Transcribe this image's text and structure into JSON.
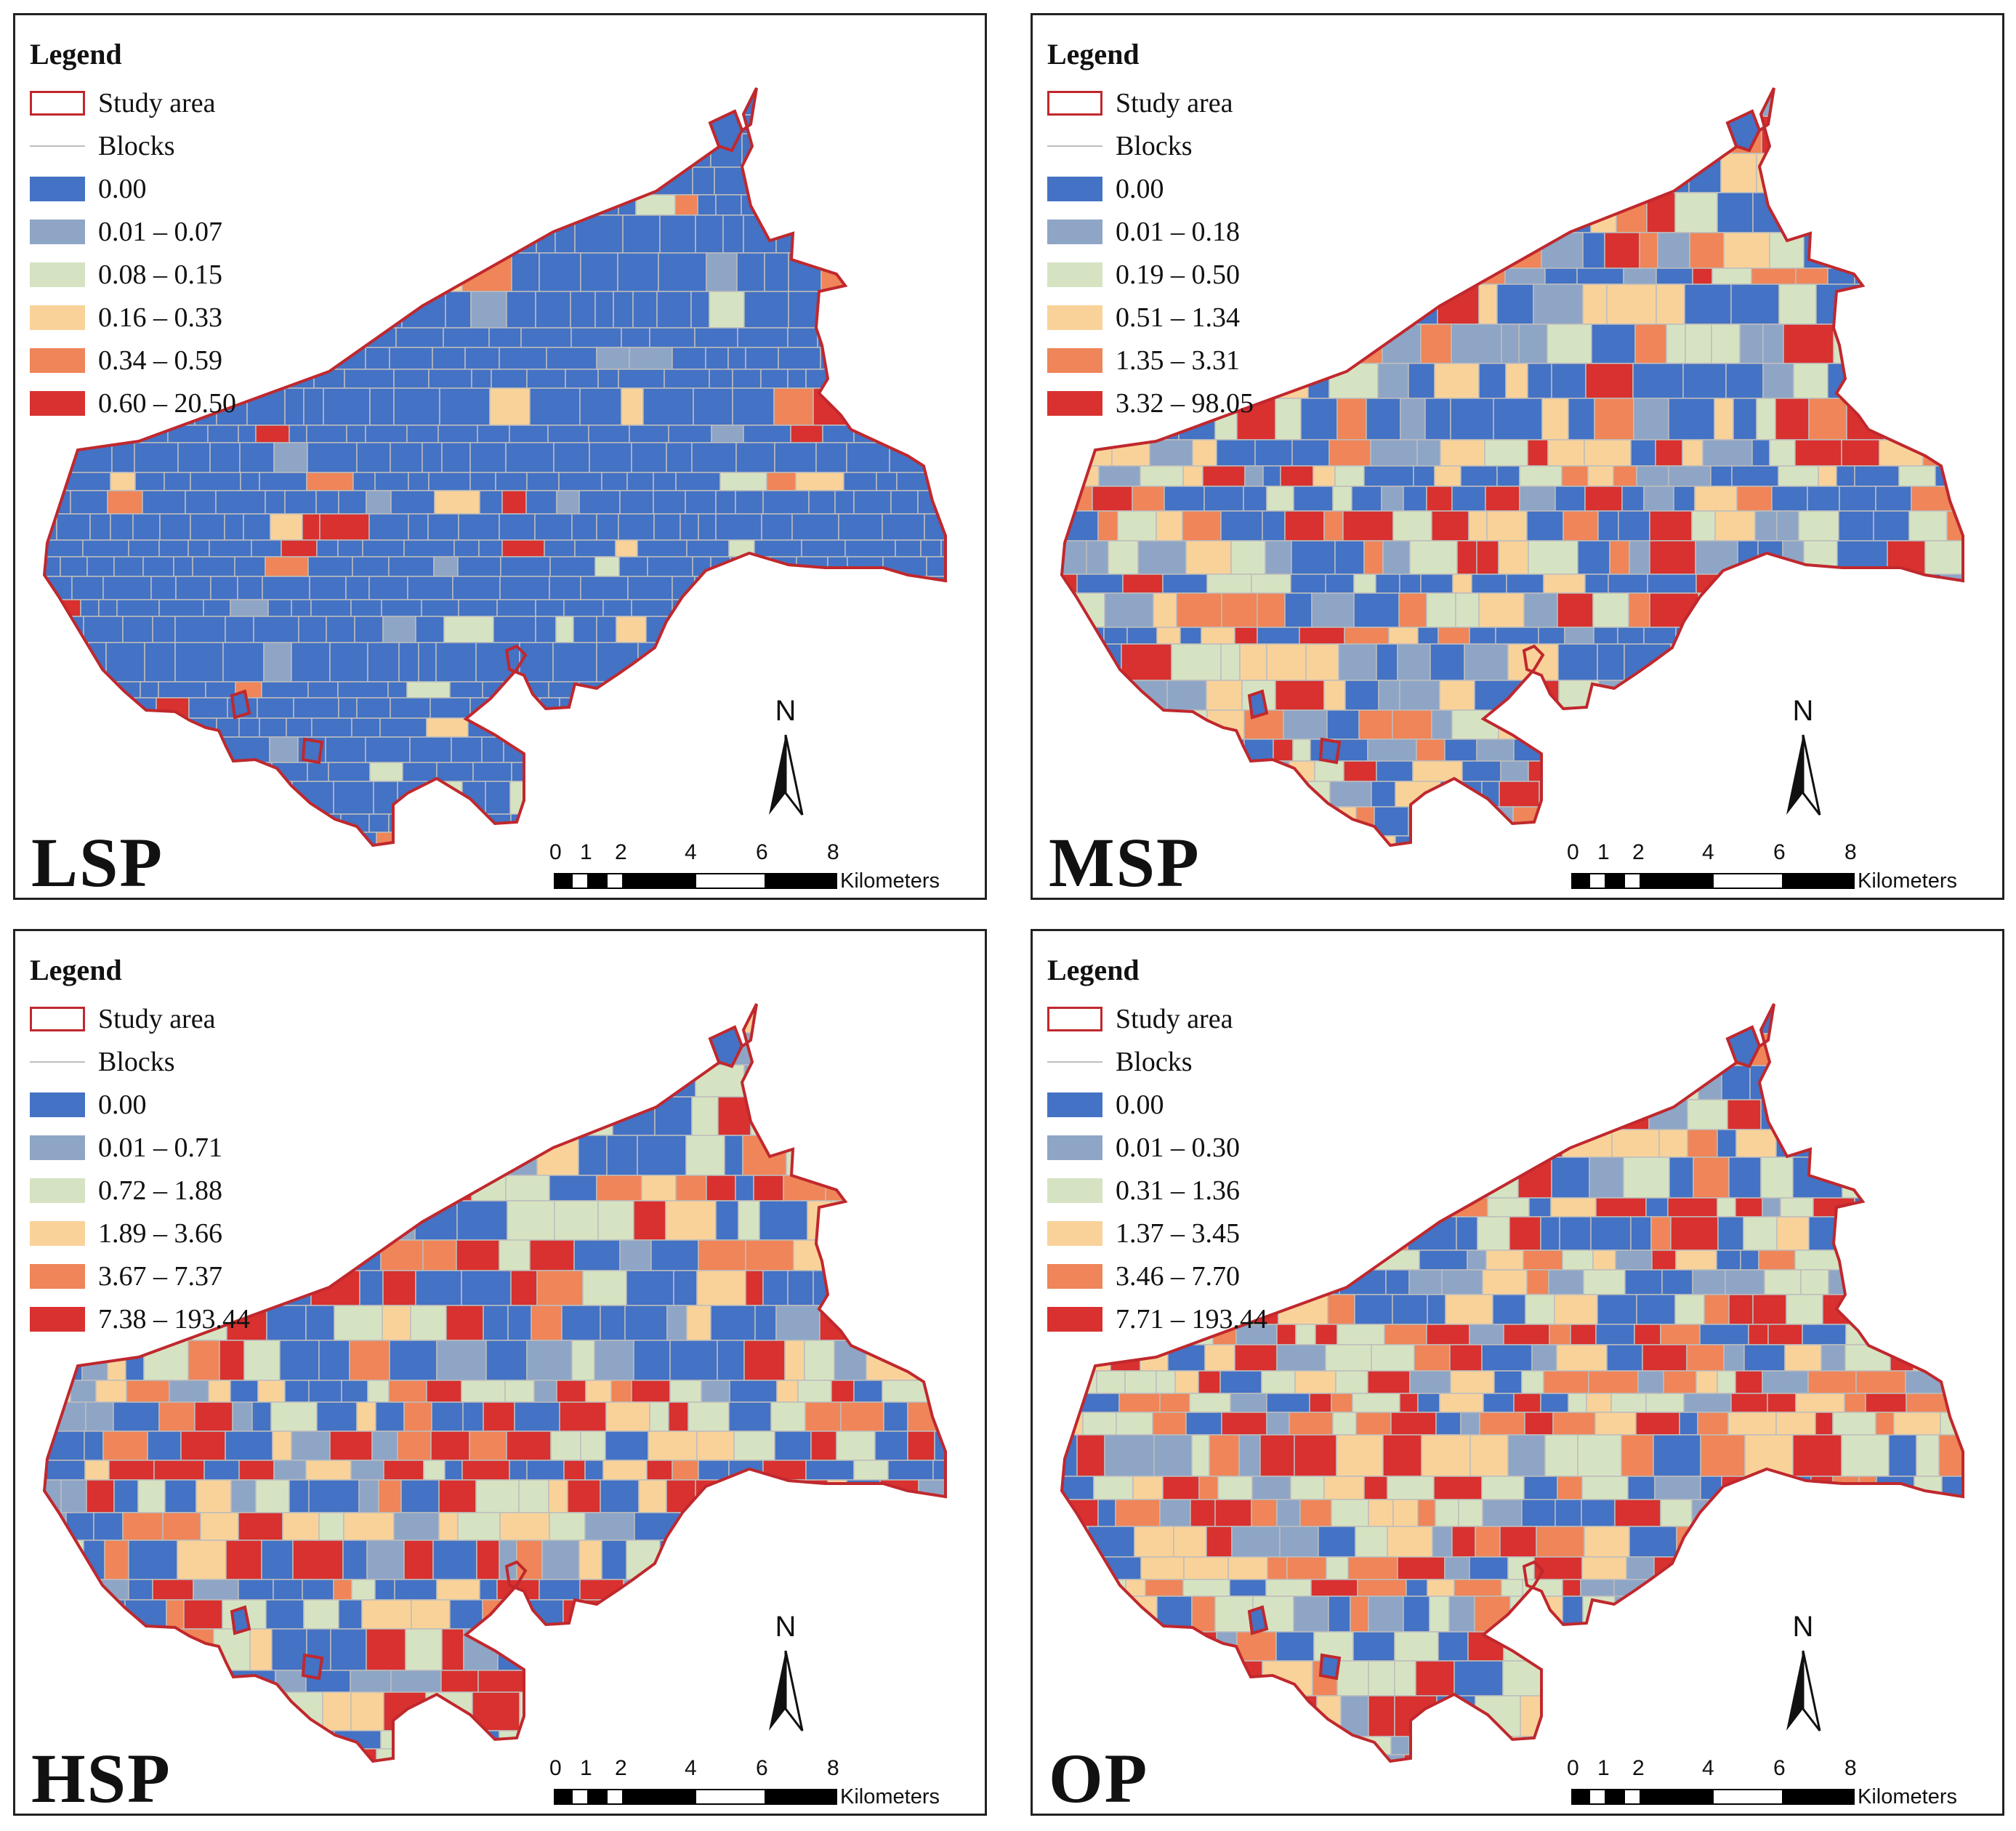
{
  "colors": {
    "study_area_outline": "#c0282d",
    "blocks_line": "#bdbdbd",
    "classes": [
      "#4472c4",
      "#8ea5c6",
      "#d6e3c2",
      "#f9d29a",
      "#ef8558",
      "#d8312f"
    ],
    "no_data": "#ffffff"
  },
  "panels": [
    {
      "id": "LSP",
      "label": "LSP",
      "legend": {
        "title": "Legend",
        "study_area": "Study area",
        "blocks": "Blocks",
        "classes": [
          "0.00",
          "0.01 – 0.07",
          "0.08 – 0.15",
          "0.16 – 0.33",
          "0.34 – 0.59",
          "0.60 – 20.50"
        ]
      },
      "class_mix": [
        0.86,
        0.04,
        0.03,
        0.03,
        0.02,
        0.02
      ]
    },
    {
      "id": "MSP",
      "label": "MSP",
      "legend": {
        "title": "Legend",
        "study_area": "Study area",
        "blocks": "Blocks",
        "classes": [
          "0.00",
          "0.01 – 0.18",
          "0.19 – 0.50",
          "0.51 – 1.34",
          "1.35 – 3.31",
          "3.32 – 98.05"
        ]
      },
      "class_mix": [
        0.38,
        0.14,
        0.12,
        0.14,
        0.1,
        0.12
      ]
    },
    {
      "id": "HSP",
      "label": "HSP",
      "legend": {
        "title": "Legend",
        "study_area": "Study area",
        "blocks": "Blocks",
        "classes": [
          "0.00",
          "0.01 – 0.71",
          "0.72 – 1.88",
          "1.89 – 3.66",
          "3.67 – 7.37",
          "7.38 – 193.44"
        ]
      },
      "class_mix": [
        0.34,
        0.12,
        0.16,
        0.1,
        0.1,
        0.18
      ]
    },
    {
      "id": "OP",
      "label": "OP",
      "legend": {
        "title": "Legend",
        "study_area": "Study area",
        "blocks": "Blocks",
        "classes": [
          "0.00",
          "0.01 – 0.30",
          "0.31 – 1.36",
          "1.37 – 3.45",
          "3.46 – 7.70",
          "7.71 – 193.44"
        ]
      },
      "class_mix": [
        0.22,
        0.12,
        0.2,
        0.12,
        0.14,
        0.2
      ]
    }
  ],
  "north_arrow": {
    "label": "N"
  },
  "scale_bar": {
    "ticks": [
      "0",
      "1",
      "2",
      "4",
      "6",
      "8"
    ],
    "unit": "Kilometers"
  }
}
